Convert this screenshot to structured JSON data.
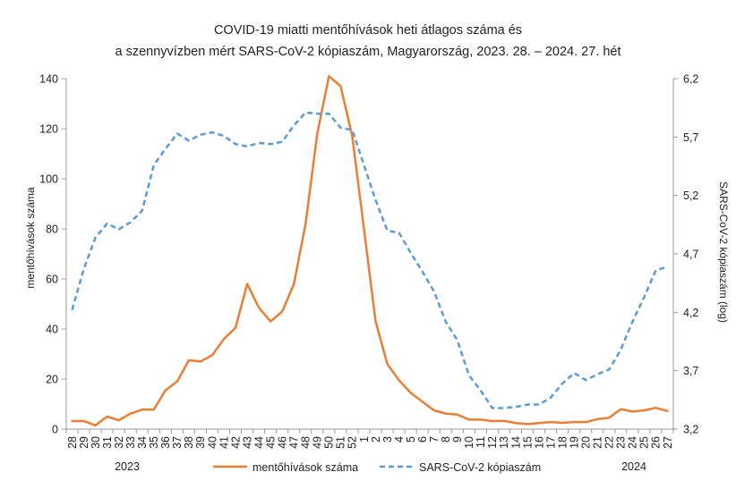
{
  "chart_data": {
    "type": "line",
    "title": [
      "COVID-19 miatti mentőhívások heti átlagos száma és",
      "a szennyvízben mért SARS-CoV-2 kópiaszám, Magyarország, 2023. 28. – 2024. 27. hét"
    ],
    "ylabel_left": "mentőhívások száma",
    "ylabel_right": "SARS-CoV-2 kópiaszám (log)",
    "y_left": {
      "min": 0,
      "max": 140,
      "ticks": [
        "0",
        "20",
        "40",
        "60",
        "80",
        "100",
        "120",
        "140"
      ]
    },
    "y_right": {
      "min": 3.2,
      "max": 6.2,
      "ticks": [
        "3,2",
        "3,7",
        "4,2",
        "4,7",
        "5,2",
        "5,7",
        "6,2"
      ]
    },
    "year_labels": [
      "2023",
      "2024"
    ],
    "categories": [
      "28",
      "29",
      "30",
      "31",
      "32",
      "33",
      "34",
      "35",
      "36",
      "37",
      "38",
      "39",
      "40",
      "41",
      "42",
      "43",
      "44",
      "45",
      "46",
      "47",
      "48",
      "49",
      "50",
      "51",
      "52",
      "1",
      "2",
      "3",
      "4",
      "5",
      "6",
      "7",
      "8",
      "9",
      "10",
      "11",
      "12",
      "13",
      "14",
      "15",
      "16",
      "17",
      "18",
      "19",
      "20",
      "21",
      "22",
      "23",
      "24",
      "25",
      "26",
      "27"
    ],
    "series": [
      {
        "name": "mentőhívások száma",
        "axis": "left",
        "color": "#ED7D31",
        "style": "solid",
        "values": [
          3.2,
          3.2,
          1.5,
          5.0,
          3.5,
          6.2,
          7.8,
          7.8,
          15.5,
          19.0,
          27.5,
          27.0,
          29.5,
          36.0,
          40.5,
          58.0,
          48.5,
          43.0,
          47.0,
          58.0,
          82.0,
          118.0,
          141.0,
          137.0,
          117.0,
          80.0,
          43.0,
          26.0,
          19.5,
          14.5,
          11.0,
          7.5,
          6.2,
          5.8,
          3.8,
          3.8,
          3.2,
          3.3,
          2.4,
          2.0,
          2.4,
          2.8,
          2.5,
          2.8,
          2.8,
          4.0,
          4.5,
          8.0,
          7.0,
          7.5,
          8.5,
          7.2
        ]
      },
      {
        "name": "SARS-CoV-2 kópiaszám",
        "axis": "right",
        "color": "#5B9BD5",
        "style": "dashed",
        "values": [
          4.22,
          4.57,
          4.84,
          4.96,
          4.91,
          4.97,
          5.07,
          5.46,
          5.6,
          5.73,
          5.67,
          5.72,
          5.74,
          5.71,
          5.64,
          5.62,
          5.65,
          5.64,
          5.66,
          5.8,
          5.91,
          5.9,
          5.9,
          5.78,
          5.76,
          5.46,
          5.16,
          4.9,
          4.88,
          4.71,
          4.55,
          4.38,
          4.12,
          3.96,
          3.66,
          3.53,
          3.38,
          3.38,
          3.39,
          3.41,
          3.41,
          3.47,
          3.59,
          3.68,
          3.62,
          3.67,
          3.71,
          3.88,
          4.12,
          4.33,
          4.56,
          4.59
        ]
      }
    ],
    "legend_position": "bottom",
    "grid": false
  }
}
